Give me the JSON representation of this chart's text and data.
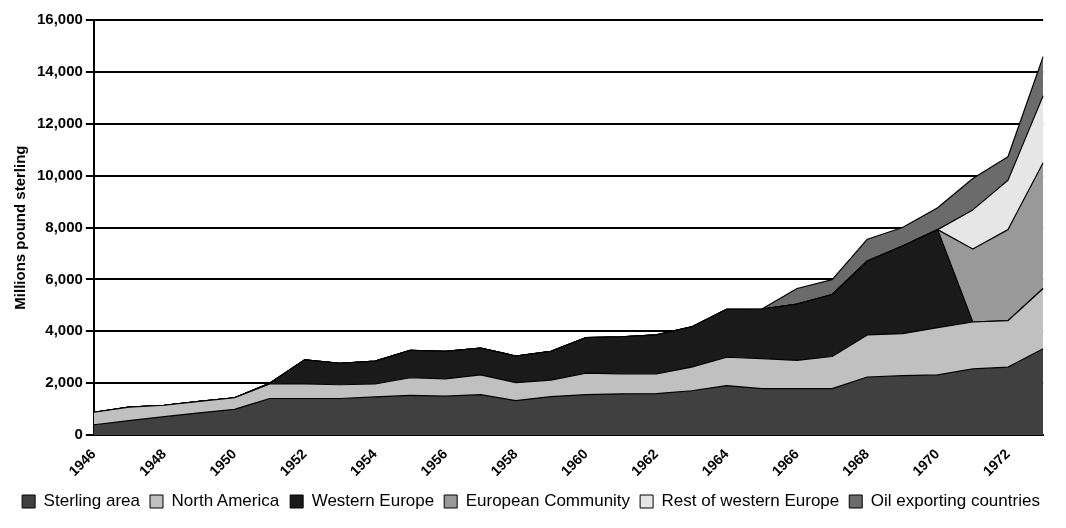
{
  "chart_data": {
    "type": "area",
    "ylabel": "Millions pound sterling",
    "stacked": true,
    "grid": "y",
    "legend": "bottom",
    "categories": [
      "1946",
      null,
      "1948",
      null,
      "1950",
      null,
      "1952",
      null,
      "1954",
      null,
      "1956",
      null,
      "1958",
      null,
      "1960",
      null,
      "1962",
      null,
      "1964",
      null,
      "1966",
      null,
      "1968",
      null,
      "1970",
      null,
      "1972",
      null
    ],
    "ylim": [
      0,
      16000
    ],
    "yticks": [
      {
        "value": 0,
        "label": "0"
      },
      {
        "value": 2000,
        "label": "2,000"
      },
      {
        "value": 4000,
        "label": "4,000"
      },
      {
        "value": 6000,
        "label": "6,000"
      },
      {
        "value": 8000,
        "label": "8,000"
      },
      {
        "value": 10000,
        "label": "10,000"
      },
      {
        "value": 12000,
        "label": "12,000"
      },
      {
        "value": 14000,
        "label": "14,000"
      },
      {
        "value": 16000,
        "label": "16,000"
      }
    ],
    "series": [
      {
        "name": "Sterling area",
        "color": "#404040",
        "values": [
          400,
          560,
          710,
          860,
          990,
          1410,
          1410,
          1410,
          1470,
          1530,
          1500,
          1560,
          1330,
          1480,
          1560,
          1590,
          1600,
          1710,
          1910,
          1790,
          1790,
          1790,
          2240,
          2290,
          2320,
          2550,
          2620,
          3330
        ]
      },
      {
        "name": "North America",
        "color": "#c0c0c0",
        "values": [
          480,
          520,
          440,
          440,
          450,
          560,
          560,
          530,
          500,
          680,
          670,
          760,
          690,
          640,
          830,
          770,
          760,
          910,
          1090,
          1160,
          1090,
          1240,
          1620,
          1620,
          1820,
          1810,
          1790,
          2320
        ]
      },
      {
        "name": "Western Europe",
        "color": "#1a1a1a",
        "values": [
          0,
          0,
          0,
          0,
          0,
          30,
          930,
          830,
          880,
          1060,
          1060,
          1030,
          1030,
          1110,
          1370,
          1430,
          1500,
          1550,
          1850,
          1910,
          2170,
          2390,
          2850,
          3380,
          3780,
          0,
          0,
          0
        ]
      },
      {
        "name": "European Community",
        "color": "#999999",
        "values": [
          0,
          0,
          0,
          0,
          0,
          0,
          0,
          0,
          0,
          0,
          0,
          0,
          0,
          0,
          0,
          0,
          0,
          0,
          0,
          0,
          0,
          0,
          0,
          0,
          0,
          2810,
          3510,
          4850
        ]
      },
      {
        "name": "Rest of western Europe",
        "color": "#e6e6e6",
        "values": [
          0,
          0,
          0,
          0,
          0,
          0,
          0,
          0,
          0,
          0,
          0,
          0,
          0,
          0,
          0,
          0,
          0,
          0,
          0,
          0,
          0,
          0,
          0,
          0,
          0,
          1510,
          1900,
          2580
        ]
      },
      {
        "name": "Oil exporting countries",
        "color": "#6b6b6b",
        "values": [
          0,
          0,
          0,
          0,
          0,
          0,
          0,
          0,
          0,
          0,
          0,
          0,
          0,
          0,
          0,
          0,
          0,
          0,
          0,
          0,
          600,
          570,
          840,
          710,
          840,
          1210,
          910,
          1510
        ]
      }
    ]
  }
}
